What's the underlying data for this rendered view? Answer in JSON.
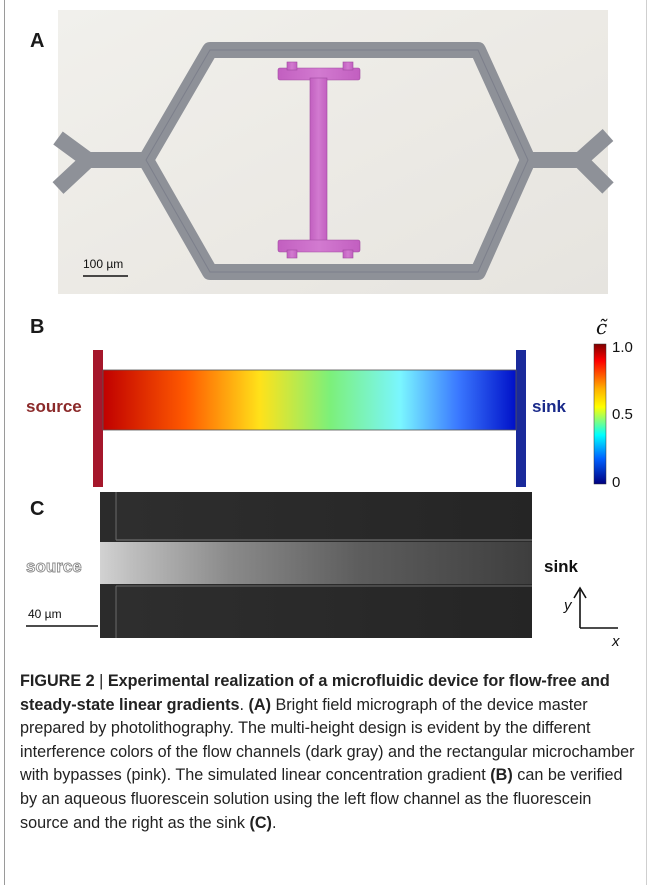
{
  "panels": {
    "a": {
      "label": "A",
      "scalebar": "100 µm"
    },
    "b": {
      "label": "B",
      "source_label": "source",
      "sink_label": "sink",
      "colorbar_symbol": "c̃",
      "colorbar_ticks": [
        "1.0",
        "0.5",
        "0"
      ],
      "colors": {
        "source": "#9b1b2a",
        "sink": "#1a2a9a",
        "gradient": [
          "#c00000",
          "#ff5a00",
          "#ffe21a",
          "#7cf07a",
          "#7af6ff",
          "#3a78ff",
          "#0010c8"
        ]
      }
    },
    "c": {
      "label": "C",
      "source_label": "source",
      "sink_label": "sink",
      "scalebar": "40 µm",
      "axis_y": "y",
      "axis_x": "x"
    }
  },
  "caption": {
    "figure_label": "FIGURE 2",
    "separator": " | ",
    "title": "Experimental realization of a microfluidic device for flow-free and steady-state linear gradients",
    "after_title": ". ",
    "ref_a": "(A)",
    "text_1": " Bright field micrograph of the device master prepared by photolithography. The multi-height design is evident by the different interference colors of the flow channels (dark gray) and the rectangular microchamber with bypasses (pink). The simulated linear concentration gradient ",
    "ref_b": "(B)",
    "text_2": " can be verified by an aqueous fluorescein solution using the left flow channel as the fluorescein source and the right as the sink ",
    "ref_c": "(C)",
    "text_3": "."
  }
}
